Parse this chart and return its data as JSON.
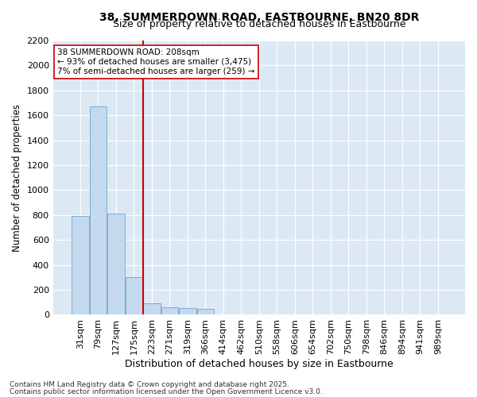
{
  "title_line1": "38, SUMMERDOWN ROAD, EASTBOURNE, BN20 8DR",
  "title_line2": "Size of property relative to detached houses in Eastbourne",
  "xlabel": "Distribution of detached houses by size in Eastbourne",
  "ylabel": "Number of detached properties",
  "categories": [
    "31sqm",
    "79sqm",
    "127sqm",
    "175sqm",
    "223sqm",
    "271sqm",
    "319sqm",
    "366sqm",
    "414sqm",
    "462sqm",
    "510sqm",
    "558sqm",
    "606sqm",
    "654sqm",
    "702sqm",
    "750sqm",
    "798sqm",
    "846sqm",
    "894sqm",
    "941sqm",
    "989sqm"
  ],
  "values": [
    790,
    1670,
    810,
    300,
    90,
    60,
    55,
    50,
    5,
    0,
    0,
    0,
    0,
    0,
    0,
    0,
    0,
    0,
    0,
    0,
    0
  ],
  "bar_color": "#c5d9ee",
  "bar_edge_color": "#7aadd4",
  "vline_index": 4,
  "vline_color": "#cc0000",
  "annotation_text": "38 SUMMERDOWN ROAD: 208sqm\n← 93% of detached houses are smaller (3,475)\n7% of semi-detached houses are larger (259) →",
  "annotation_box_color": "#ffffff",
  "annotation_box_edge": "#cc0000",
  "background_color": "#dce9f5",
  "fig_background": "#ffffff",
  "grid_color": "#ffffff",
  "ylim": [
    0,
    2200
  ],
  "yticks": [
    0,
    200,
    400,
    600,
    800,
    1000,
    1200,
    1400,
    1600,
    1800,
    2000,
    2200
  ],
  "footer_line1": "Contains HM Land Registry data © Crown copyright and database right 2025.",
  "footer_line2": "Contains public sector information licensed under the Open Government Licence v3.0."
}
